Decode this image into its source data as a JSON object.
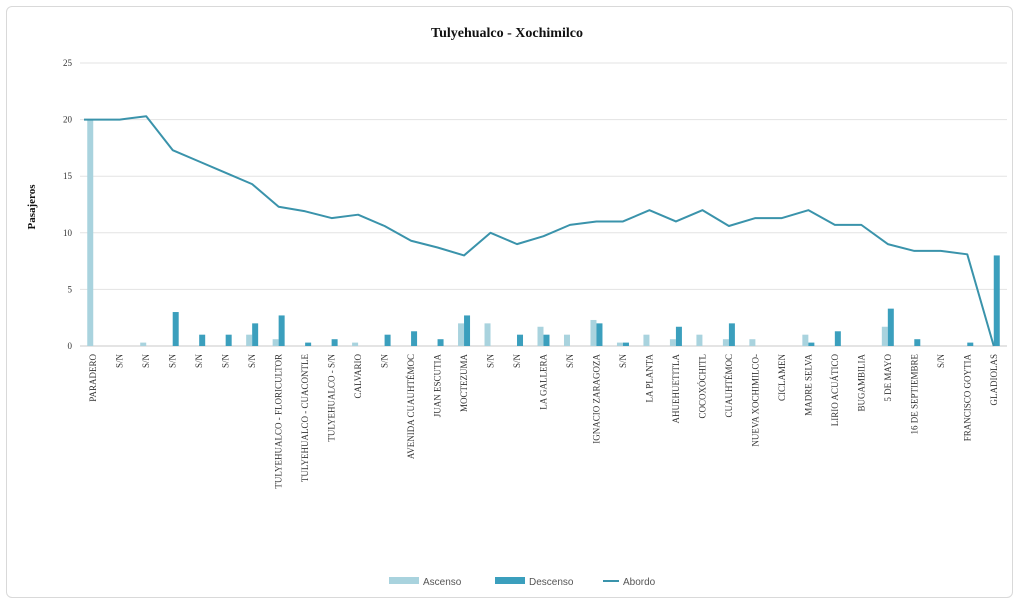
{
  "chart_data": {
    "type": "bar",
    "title": "Tulyehualco - Xochimilco",
    "ylabel": "Pasajeros",
    "xlabel": "",
    "ylim": [
      0,
      25
    ],
    "yticks": [
      0,
      5,
      10,
      15,
      20,
      25
    ],
    "grid": true,
    "legend_position": "bottom",
    "categories": [
      "PARADERO",
      "S/N",
      "S/N",
      "S/N",
      "S/N",
      "S/N",
      "S/N",
      "TULYEHUALCO - FLORICULTOR",
      "TULYEHUALCO - CUACONTLE",
      "TULYEHUALCO - S/N",
      "CALVARIO",
      "S/N",
      "AVENIDA CUAUHTÉMOC",
      "JUAN ESCUTIA",
      "MOCTEZUMA",
      "S/N",
      "S/N",
      "LA GALLERA",
      "S/N",
      "IGNACIO ZARAGOZA",
      "S/N",
      "LA PLANTA",
      "AHUEHUETITLA",
      "COCOXÓCHITL",
      "CUAUHTÉMOC",
      "NUEVA XOCHIMILCO-",
      "CICLAMEN",
      "MADRE SELVA",
      "LIRIO ACUÁTICO",
      "BUGAMBILIA",
      "5 DE MAYO",
      "16 DE SEPTIEMBRE",
      "S/N",
      "FRANCISCO GOYTIA",
      "GLADIOLAS"
    ],
    "series": [
      {
        "name": "Ascenso",
        "type": "bar",
        "color": "#a9d3de",
        "values": [
          20,
          0,
          0.3,
          0,
          0,
          0,
          1,
          0.6,
          0,
          0,
          0.3,
          0,
          0,
          0,
          2,
          2,
          0,
          1.7,
          1,
          2.3,
          0.3,
          1,
          0.6,
          1,
          0.6,
          0.6,
          0,
          1,
          0,
          0,
          1.7,
          0,
          0,
          0,
          0
        ]
      },
      {
        "name": "Descenso",
        "type": "bar",
        "color": "#3b9fbd",
        "values": [
          0,
          0,
          0,
          3,
          1,
          1,
          2,
          2.7,
          0.3,
          0.6,
          0,
          1,
          1.3,
          0.6,
          2.7,
          0,
          1,
          1,
          0,
          2,
          0.3,
          0,
          1.7,
          0,
          2,
          0,
          0,
          0.3,
          1.3,
          0,
          3.3,
          0.6,
          0,
          0.3,
          8
        ]
      },
      {
        "name": "Abordo",
        "type": "line",
        "color": "#3a93ab",
        "values": [
          20,
          20,
          20.3,
          17.3,
          16.3,
          15.3,
          14.3,
          12.3,
          11.9,
          11.3,
          11.6,
          10.6,
          9.3,
          8.7,
          8,
          10,
          9,
          9.7,
          10.7,
          11,
          11,
          12,
          11,
          12,
          10.6,
          11.3,
          11.3,
          12,
          10.7,
          10.7,
          9,
          8.4,
          8.4,
          8.1,
          0
        ]
      }
    ]
  }
}
